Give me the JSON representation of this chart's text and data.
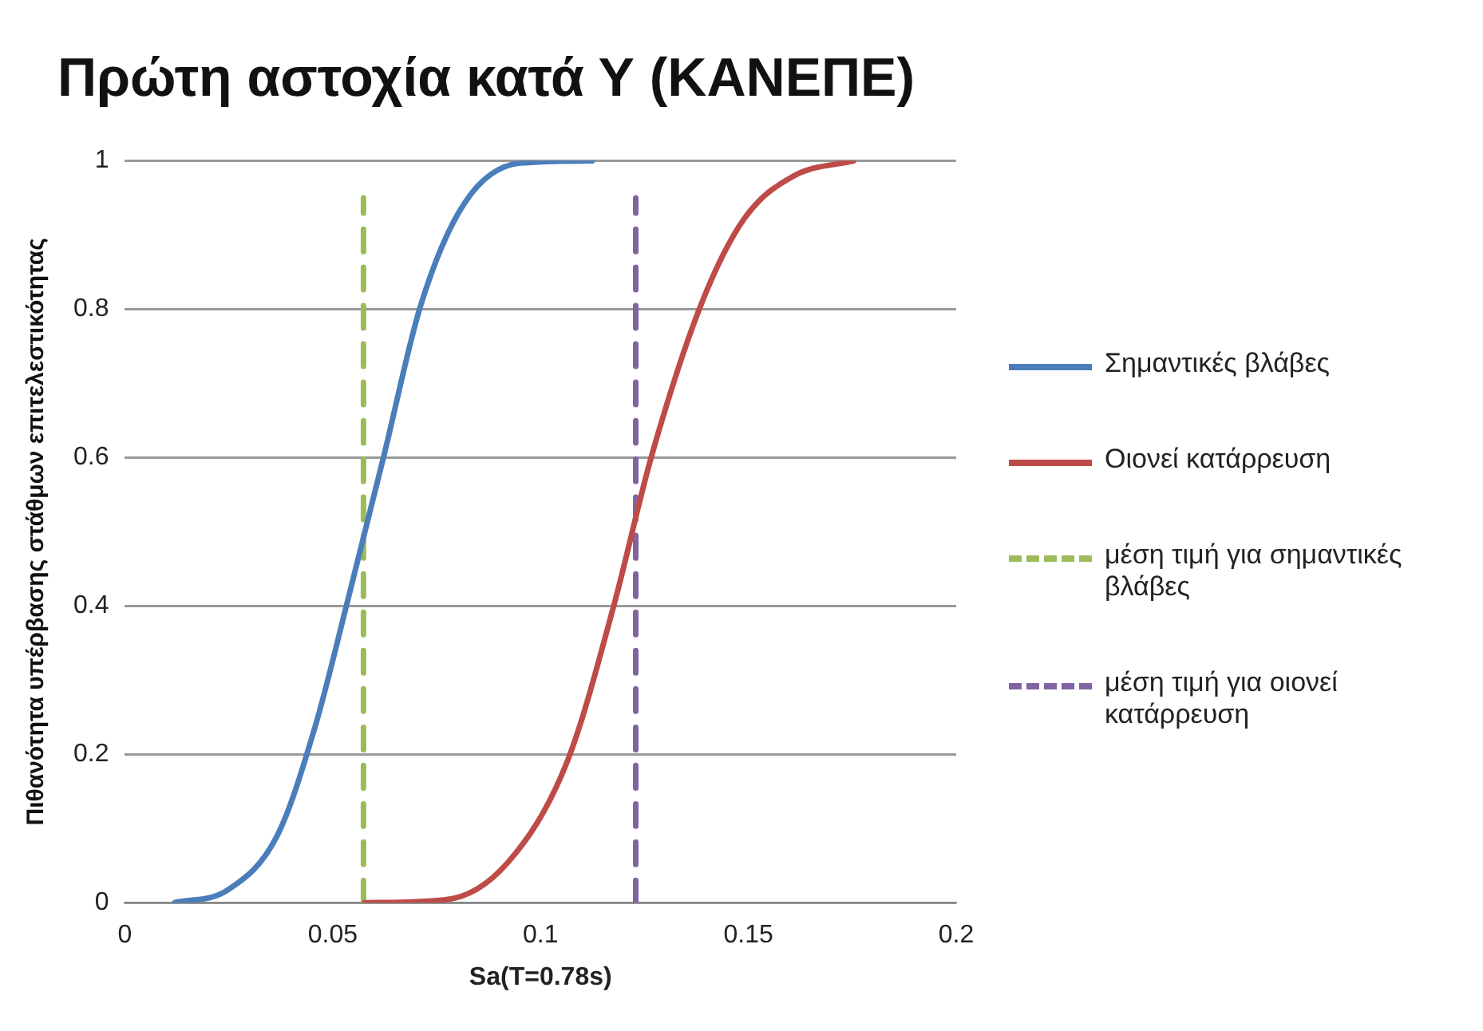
{
  "chart_data": {
    "type": "line",
    "title": "Πρώτη αστοχία κατά Υ (ΚΑΝΕΠΕ)",
    "xlabel": "Sa(T=0.78s)",
    "ylabel": "Πιθανότητα υπέρβασης στάθμων επιτελεστικότητας",
    "xlim": [
      0,
      0.2
    ],
    "xticks": [
      0,
      0.05,
      0.1,
      0.15,
      0.2
    ],
    "ylim": [
      0,
      1
    ],
    "yticks": [
      0,
      0.2,
      0.4,
      0.6,
      0.8,
      1
    ],
    "grid": "y",
    "legend": "right",
    "marker": "none",
    "series": [
      {
        "name": "Σημαντικές βλάβες",
        "color": "#4a7ebb",
        "line_style": "solid",
        "x": [
          0.012,
          0.0247,
          0.0367,
          0.0457,
          0.0539,
          0.0622,
          0.0712,
          0.0817,
          0.0951,
          0.1124
        ],
        "values": [
          0,
          0.017,
          0.091,
          0.236,
          0.414,
          0.6,
          0.806,
          0.943,
          0.997,
          1
        ]
      },
      {
        "name": "Οιονεί κατάρρευση",
        "color": "#be4b48",
        "line_style": "solid",
        "x": [
          0.0577,
          0.0772,
          0.0921,
          0.1064,
          0.1176,
          0.1266,
          0.1386,
          0.149,
          0.161,
          0.1753
        ],
        "values": [
          0,
          0.004,
          0.054,
          0.19,
          0.4,
          0.6,
          0.806,
          0.922,
          0.98,
          1
        ]
      },
      {
        "name": "μέση τιμή για σημαντικές βλάβες",
        "color": "#9bbb59",
        "line_style": "dashed",
        "x": [
          0.0574,
          0.0574
        ],
        "values": [
          0,
          0.95
        ]
      },
      {
        "name": "μέση τιμή για οιονεί κατάρρευση",
        "color": "#8064a2",
        "line_style": "dashed",
        "x": [
          0.1229,
          0.1229
        ],
        "values": [
          0,
          0.95
        ]
      }
    ]
  }
}
